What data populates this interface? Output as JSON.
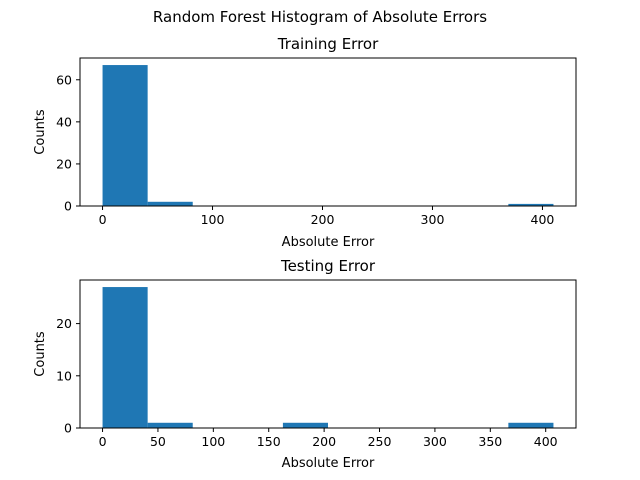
{
  "suptitle": "Random Forest Histogram of Absolute Errors",
  "chart_data": [
    {
      "type": "histogram",
      "title": "Training Error",
      "xlabel": "Absolute Error",
      "ylabel": "Counts",
      "bins": [
        {
          "x0": 0.0,
          "x1": 41.0,
          "count": 67
        },
        {
          "x0": 41.0,
          "x1": 82.0,
          "count": 2
        },
        {
          "x0": 82.0,
          "x1": 123.0,
          "count": 0
        },
        {
          "x0": 123.0,
          "x1": 164.0,
          "count": 0
        },
        {
          "x0": 164.0,
          "x1": 205.0,
          "count": 0
        },
        {
          "x0": 205.0,
          "x1": 246.0,
          "count": 0
        },
        {
          "x0": 246.0,
          "x1": 287.0,
          "count": 0
        },
        {
          "x0": 287.0,
          "x1": 328.0,
          "count": 0
        },
        {
          "x0": 328.0,
          "x1": 369.0,
          "count": 0
        },
        {
          "x0": 369.0,
          "x1": 410.0,
          "count": 1
        }
      ],
      "xlim": [
        -20.5,
        430.5
      ],
      "ylim": [
        0,
        70.35
      ],
      "xticks": [
        0,
        100,
        200,
        300,
        400
      ],
      "yticks": [
        0,
        20,
        40,
        60
      ],
      "bar_color": "#1f77b4",
      "grid": false
    },
    {
      "type": "histogram",
      "title": "Testing Error",
      "xlabel": "Absolute Error",
      "ylabel": "Counts",
      "bins": [
        {
          "x0": 0.0,
          "x1": 40.7,
          "count": 27
        },
        {
          "x0": 40.7,
          "x1": 81.4,
          "count": 1
        },
        {
          "x0": 81.4,
          "x1": 122.1,
          "count": 0
        },
        {
          "x0": 122.1,
          "x1": 162.8,
          "count": 0
        },
        {
          "x0": 162.8,
          "x1": 203.5,
          "count": 1
        },
        {
          "x0": 203.5,
          "x1": 244.2,
          "count": 0
        },
        {
          "x0": 244.2,
          "x1": 284.9,
          "count": 0
        },
        {
          "x0": 284.9,
          "x1": 325.6,
          "count": 0
        },
        {
          "x0": 325.6,
          "x1": 366.3,
          "count": 0
        },
        {
          "x0": 366.3,
          "x1": 407.0,
          "count": 1
        }
      ],
      "xlim": [
        -20.35,
        427.35
      ],
      "ylim": [
        0,
        28.35
      ],
      "xticks": [
        0,
        50,
        100,
        150,
        200,
        250,
        300,
        350,
        400
      ],
      "yticks": [
        0,
        10,
        20
      ],
      "bar_color": "#1f77b4",
      "grid": false
    }
  ]
}
